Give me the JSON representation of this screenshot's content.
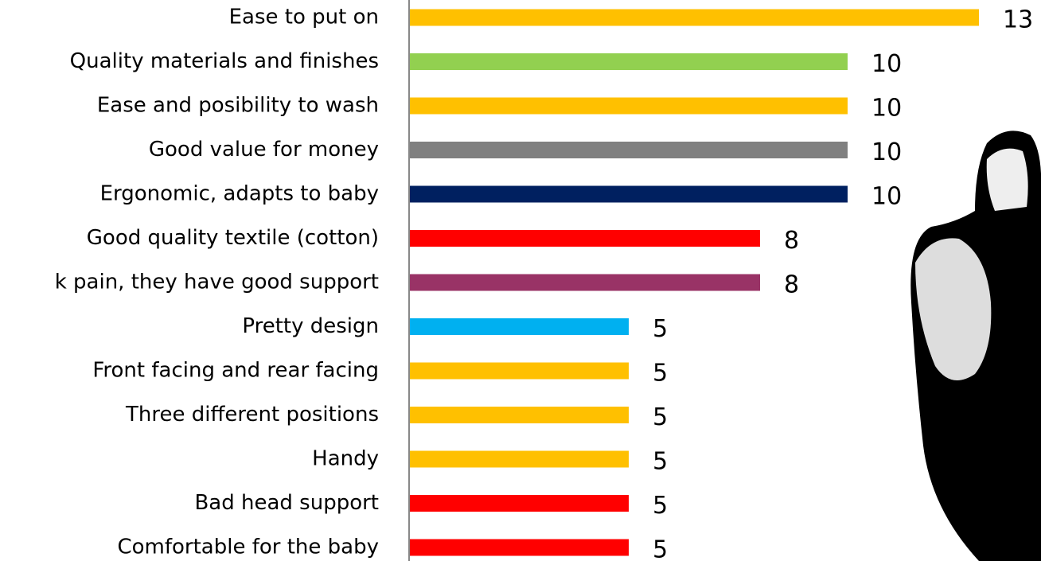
{
  "chart_data": {
    "type": "bar",
    "orientation": "horizontal",
    "categories": [
      "Ease to put on",
      "Quality materials and finishes",
      "Ease and posibility to wash",
      "Good value for money",
      "Ergonomic, adapts to baby",
      "Good quality textile (cotton)",
      "k pain, they have good support",
      "Pretty design",
      "Front facing and rear facing",
      "Three different positions",
      "Handy",
      "Bad head support",
      "Comfortable for the baby"
    ],
    "values": [
      13,
      10,
      10,
      10,
      10,
      8,
      8,
      5,
      5,
      5,
      5,
      5,
      5
    ],
    "colors": [
      "#FFC000",
      "#92D050",
      "#FFC000",
      "#808080",
      "#002060",
      "#FF0000",
      "#993366",
      "#00B0F0",
      "#FFC000",
      "#FFC000",
      "#FFC000",
      "#FF0000",
      "#FF0000"
    ]
  }
}
